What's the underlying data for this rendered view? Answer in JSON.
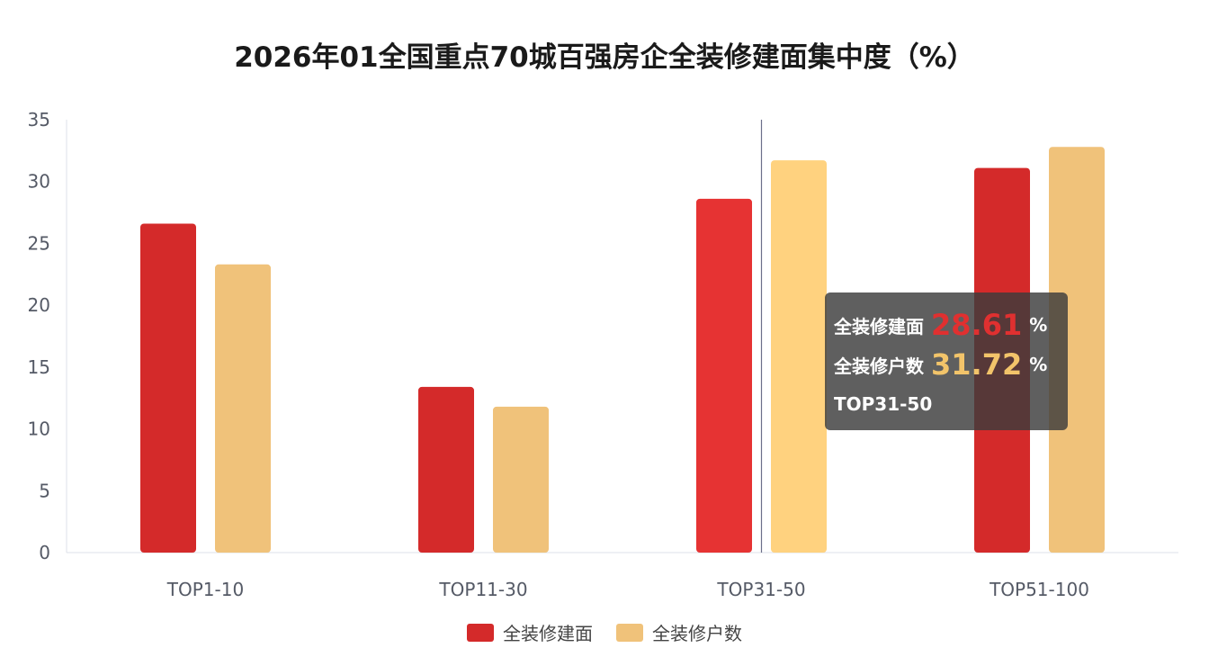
{
  "chart_data": {
    "type": "bar",
    "title": "2026年01全国重点70城百强房企全装修建面集中度（%）",
    "categories": [
      "TOP1-10",
      "TOP11-30",
      "TOP31-50",
      "TOP51-100"
    ],
    "series": [
      {
        "name": "全装修建面",
        "color": "#d42a2a",
        "values": [
          26.6,
          13.4,
          28.61,
          31.1
        ]
      },
      {
        "name": "全装修户数",
        "color": "#f0c27a",
        "values": [
          23.3,
          11.8,
          31.72,
          32.8
        ]
      }
    ],
    "ylim": [
      0,
      35
    ],
    "yticks": [
      "0",
      "5",
      "10",
      "15",
      "20",
      "25",
      "30",
      "35"
    ],
    "legend": "bottom",
    "highlight_index": 2
  },
  "tooltip": {
    "series1_label": "全装修建面",
    "series1_value": "28.61",
    "series1_color": "#e03030",
    "series2_label": "全装修户数",
    "series2_value": "31.72",
    "series2_color": "#f2c46a",
    "unit": "%",
    "category": "TOP31-50"
  }
}
